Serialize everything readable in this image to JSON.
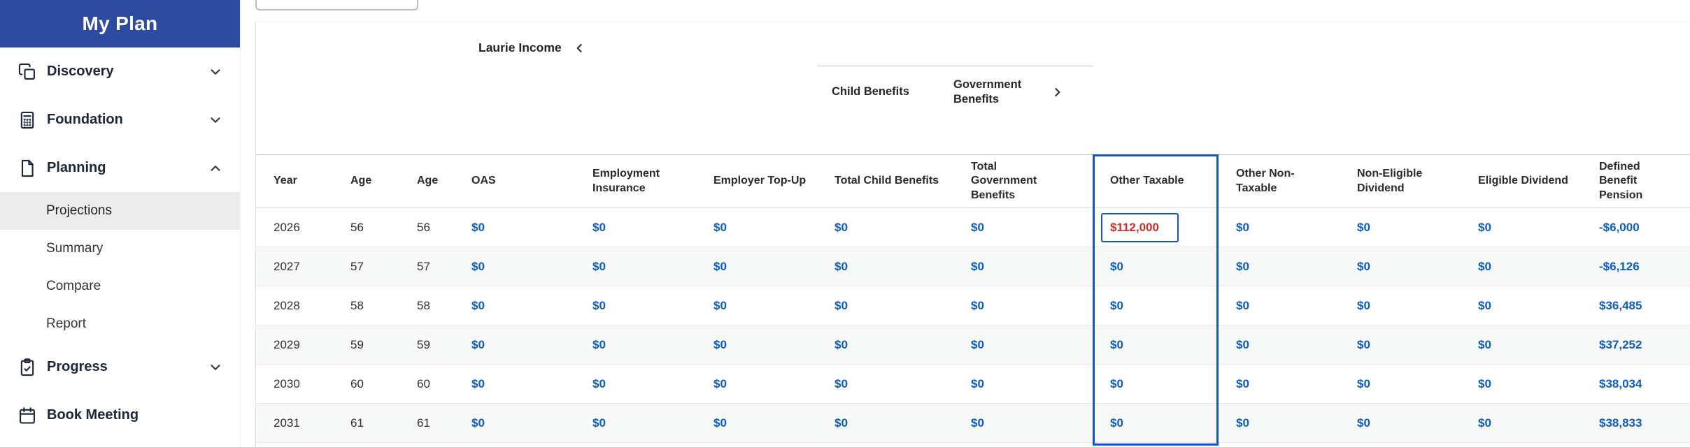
{
  "sidebar": {
    "title": "My Plan",
    "items": [
      {
        "label": "Discovery",
        "icon": "discovery-icon",
        "chevron": "down"
      },
      {
        "label": "Foundation",
        "icon": "calculator-icon",
        "chevron": "down"
      },
      {
        "label": "Planning",
        "icon": "document-icon",
        "chevron": "up",
        "children": [
          {
            "label": "Projections",
            "active": true
          },
          {
            "label": "Summary",
            "active": false
          },
          {
            "label": "Compare",
            "active": false
          },
          {
            "label": "Report",
            "active": false
          }
        ]
      },
      {
        "label": "Progress",
        "icon": "clipboard-icon",
        "chevron": "down"
      },
      {
        "label": "Book Meeting",
        "icon": "calendar-icon",
        "chevron": null
      }
    ]
  },
  "content": {
    "person_group": {
      "label": "Laurie Income",
      "collapse_icon": "chevron-left-icon"
    },
    "benefit_groups": {
      "child": {
        "label": "Child Benefits"
      },
      "government": {
        "label": "Government Benefits",
        "expand_icon": "chevron-right-icon"
      }
    },
    "columns": [
      {
        "key": "year",
        "label": "Year"
      },
      {
        "key": "age1",
        "label": "Age"
      },
      {
        "key": "age2",
        "label": "Age"
      },
      {
        "key": "oas",
        "label": "OAS"
      },
      {
        "key": "ei",
        "label": "Employment Insurance"
      },
      {
        "key": "topup",
        "label": "Employer Top-Up"
      },
      {
        "key": "child",
        "label": "Total Child Benefits"
      },
      {
        "key": "gov",
        "label": "Total Government Benefits"
      },
      {
        "key": "other_taxable",
        "label": "Other Taxable",
        "highlighted": true
      },
      {
        "key": "other_nontax",
        "label": "Other Non-Taxable"
      },
      {
        "key": "nonelig",
        "label": "Non-Eligible Dividend"
      },
      {
        "key": "elig",
        "label": "Eligible Dividend"
      },
      {
        "key": "dbp",
        "label": "Defined Benefit Pension"
      }
    ],
    "highlighted_column": "Other Taxable",
    "rows": [
      {
        "year": "2026",
        "age1": "56",
        "age2": "56",
        "oas": "$0",
        "ei": "$0",
        "topup": "$0",
        "child": "$0",
        "gov": "$0",
        "other_taxable": "$112,000",
        "other_taxable_state": "edited",
        "other_nontax": "$0",
        "nonelig": "$0",
        "elig": "$0",
        "dbp": "-$6,000"
      },
      {
        "year": "2027",
        "age1": "57",
        "age2": "57",
        "oas": "$0",
        "ei": "$0",
        "topup": "$0",
        "child": "$0",
        "gov": "$0",
        "other_taxable": "$0",
        "other_taxable_state": "normal",
        "other_nontax": "$0",
        "nonelig": "$0",
        "elig": "$0",
        "dbp": "-$6,126"
      },
      {
        "year": "2028",
        "age1": "58",
        "age2": "58",
        "oas": "$0",
        "ei": "$0",
        "topup": "$0",
        "child": "$0",
        "gov": "$0",
        "other_taxable": "$0",
        "other_taxable_state": "normal",
        "other_nontax": "$0",
        "nonelig": "$0",
        "elig": "$0",
        "dbp": "$36,485"
      },
      {
        "year": "2029",
        "age1": "59",
        "age2": "59",
        "oas": "$0",
        "ei": "$0",
        "topup": "$0",
        "child": "$0",
        "gov": "$0",
        "other_taxable": "$0",
        "other_taxable_state": "normal",
        "other_nontax": "$0",
        "nonelig": "$0",
        "elig": "$0",
        "dbp": "$37,252"
      },
      {
        "year": "2030",
        "age1": "60",
        "age2": "60",
        "oas": "$0",
        "ei": "$0",
        "topup": "$0",
        "child": "$0",
        "gov": "$0",
        "other_taxable": "$0",
        "other_taxable_state": "normal",
        "other_nontax": "$0",
        "nonelig": "$0",
        "elig": "$0",
        "dbp": "$38,034"
      },
      {
        "year": "2031",
        "age1": "61",
        "age2": "61",
        "oas": "$0",
        "ei": "$0",
        "topup": "$0",
        "child": "$0",
        "gov": "$0",
        "other_taxable": "$0",
        "other_taxable_state": "normal",
        "other_nontax": "$0",
        "nonelig": "$0",
        "elig": "$0",
        "dbp": "$38,833"
      }
    ]
  },
  "colors": {
    "sidebar_header_bg": "#2d4ba0",
    "value_blue": "#0d5cc4",
    "edited_red": "#d02c2c",
    "highlight_border": "#1353cf",
    "active_item_bg": "#ececec",
    "alt_row_bg": "#f7f8f8"
  }
}
